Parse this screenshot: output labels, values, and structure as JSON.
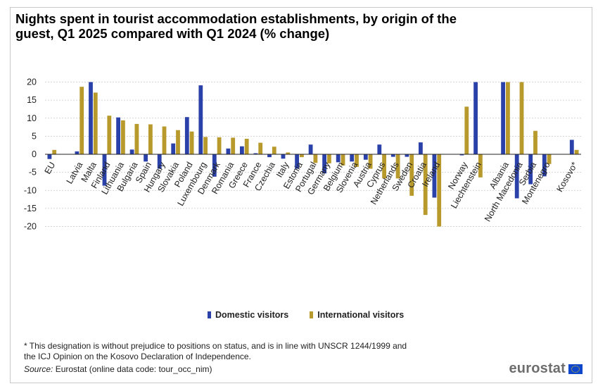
{
  "title": "Nights spent in tourist accommodation establishments, by origin of the guest, Q1 2025 compared with Q1 2024 (% change)",
  "colors": {
    "domestic": "#2b41aa",
    "international": "#b89a2c",
    "grid": "#c8c8c8"
  },
  "chart_data": {
    "type": "bar",
    "ylim": [
      -20,
      20
    ],
    "yticks": [
      20,
      15,
      10,
      5,
      0,
      -5,
      -10,
      -15,
      -20
    ],
    "grid": "horizontal dashed",
    "legend_position": "bottom",
    "categories": [
      "EU",
      "",
      "Latvia",
      "Malta",
      "Finland",
      "Lithuania",
      "Bulgaria",
      "Spain",
      "Hungary",
      "Slovakia",
      "Poland",
      "Luxembourg",
      "Denmark",
      "Romania",
      "Greece",
      "France",
      "Czechia",
      "Italy",
      "Estonia",
      "Portugal",
      "Germany",
      "Belgium",
      "Slovenia",
      "Austria",
      "Cyprus",
      "Netherlands",
      "Sweden",
      "Croatia",
      "Ireland",
      "",
      "Norway",
      "Liechtenstein",
      "",
      "Albania",
      "North Macedonia",
      "Serbia",
      "Montenegro",
      "",
      "Kosovo*"
    ],
    "series": [
      {
        "name": "Domestic visitors",
        "values": [
          -1.3,
          null,
          0.8,
          20,
          -8.7,
          10.2,
          1.3,
          -2,
          -4,
          3,
          10.3,
          19.1,
          -6.2,
          1.6,
          2.2,
          0.3,
          -0.8,
          -1.2,
          -4,
          2.7,
          -5.3,
          -2.2,
          -2,
          -1.5,
          2.7,
          -0.7,
          -0.7,
          3.3,
          -12,
          null,
          -0.3,
          20,
          null,
          20,
          -12.2,
          -8.3,
          -6.1,
          null,
          4
        ]
      },
      {
        "name": "International visitors",
        "values": [
          1.2,
          null,
          18.7,
          17.1,
          10.7,
          9.4,
          8.4,
          8.3,
          7.7,
          6.7,
          6.3,
          4.8,
          4.7,
          4.6,
          4.3,
          3.2,
          2.1,
          0.5,
          -0.8,
          -2.4,
          -2.5,
          -3.1,
          -3.5,
          -4,
          -6.7,
          -6.7,
          -11.5,
          -16.8,
          -20,
          null,
          13.2,
          -6.4,
          null,
          20,
          20,
          6.5,
          -2.7,
          null,
          1.2
        ]
      }
    ]
  },
  "legend": {
    "domestic": "Domestic visitors",
    "international": "International visitors"
  },
  "footnote": "* This designation is without prejudice to positions on status, and is in line with UNSCR 1244/1999 and the ICJ Opinion on the Kosovo Declaration of Independence.",
  "source": {
    "label": "Source:",
    "text": "Eurostat (online data code: tour_occ_nim)"
  },
  "logo": {
    "text": "eurostat"
  }
}
